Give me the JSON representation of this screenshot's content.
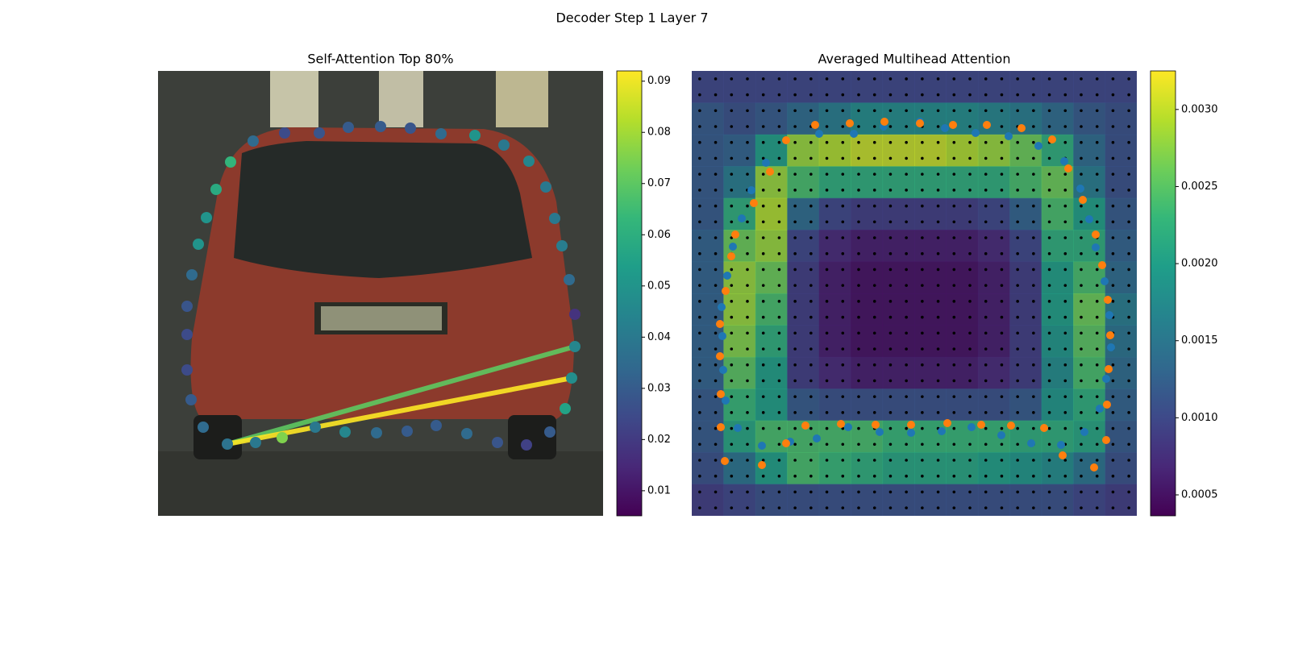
{
  "title": "Decoder Step 1 Layer 7",
  "chart_data": [
    {
      "type": "scatter",
      "title": "Self-Attention Top 80%",
      "xlim": [
        0,
        552
      ],
      "ylim": [
        552,
        0
      ],
      "x": [
        86,
        121,
        154,
        195,
        232,
        271,
        309,
        345,
        383,
        421,
        457,
        486,
        505,
        513,
        517,
        517,
        510,
        501,
        492,
        481,
        460,
        429,
        393,
        351,
        313,
        276,
        236,
        200,
        157,
        118,
        90,
        72,
        60,
        50,
        42,
        36,
        36,
        36,
        41,
        56
      ],
      "y": [
        463,
        461,
        455,
        442,
        448,
        449,
        447,
        440,
        450,
        461,
        464,
        448,
        419,
        381,
        342,
        302,
        259,
        217,
        183,
        144,
        112,
        92,
        80,
        78,
        71,
        69,
        70,
        77,
        77,
        87,
        113,
        147,
        182,
        215,
        253,
        292,
        327,
        371,
        408,
        442
      ],
      "values": [
        0.038,
        0.04,
        0.075,
        0.04,
        0.045,
        0.035,
        0.03,
        0.03,
        0.035,
        0.028,
        0.022,
        0.03,
        0.055,
        0.048,
        0.045,
        0.018,
        0.035,
        0.042,
        0.04,
        0.04,
        0.045,
        0.04,
        0.05,
        0.035,
        0.028,
        0.03,
        0.03,
        0.028,
        0.025,
        0.035,
        0.062,
        0.058,
        0.05,
        0.05,
        0.035,
        0.028,
        0.025,
        0.025,
        0.03,
        0.035
      ],
      "lines": [
        {
          "from": 0,
          "to": 14,
          "value": 0.07
        },
        {
          "from": 0,
          "to": 13,
          "value": 0.092
        }
      ],
      "clim": [
        0.0051,
        0.092
      ],
      "cticks": [
        0.01,
        0.02,
        0.03,
        0.04,
        0.05,
        0.06,
        0.07,
        0.08,
        0.09
      ]
    },
    {
      "type": "heatmap",
      "title": "Averaged Multihead Attention",
      "xlim": [
        0,
        552
      ],
      "ylim": [
        552,
        0
      ],
      "heatmap": [
        [
          0.001,
          0.001,
          0.001,
          0.001,
          0.001,
          0.001,
          0.001,
          0.001,
          0.001,
          0.001,
          0.001,
          0.001,
          0.001,
          0.001
        ],
        [
          0.0012,
          0.0011,
          0.0012,
          0.0014,
          0.0016,
          0.0018,
          0.0018,
          0.0018,
          0.0018,
          0.0017,
          0.0016,
          0.0014,
          0.0012,
          0.0011
        ],
        [
          0.0012,
          0.0013,
          0.002,
          0.0028,
          0.0029,
          0.003,
          0.003,
          0.003,
          0.0029,
          0.0028,
          0.0026,
          0.0022,
          0.0014,
          0.0011
        ],
        [
          0.0012,
          0.0016,
          0.0028,
          0.0024,
          0.0022,
          0.0022,
          0.0022,
          0.0022,
          0.0022,
          0.0022,
          0.0024,
          0.0026,
          0.0016,
          0.0011
        ],
        [
          0.0012,
          0.0022,
          0.0029,
          0.0014,
          0.001,
          0.0009,
          0.0009,
          0.0009,
          0.0009,
          0.001,
          0.0013,
          0.0024,
          0.002,
          0.0012
        ],
        [
          0.0013,
          0.0026,
          0.0028,
          0.001,
          0.0007,
          0.0006,
          0.0006,
          0.0006,
          0.0006,
          0.0007,
          0.001,
          0.0022,
          0.0022,
          0.0013
        ],
        [
          0.0013,
          0.0028,
          0.0026,
          0.0009,
          0.0006,
          0.0005,
          0.0005,
          0.0005,
          0.0005,
          0.0006,
          0.0009,
          0.002,
          0.0024,
          0.0014
        ],
        [
          0.0013,
          0.0028,
          0.0024,
          0.0009,
          0.0006,
          0.0005,
          0.0005,
          0.0005,
          0.0005,
          0.0006,
          0.0009,
          0.002,
          0.0026,
          0.0016
        ],
        [
          0.0013,
          0.0027,
          0.0022,
          0.0009,
          0.0006,
          0.0005,
          0.0005,
          0.0005,
          0.0005,
          0.0006,
          0.0009,
          0.0019,
          0.0025,
          0.0015
        ],
        [
          0.0013,
          0.0025,
          0.002,
          0.0009,
          0.0007,
          0.0006,
          0.0006,
          0.0006,
          0.0006,
          0.0007,
          0.0009,
          0.0018,
          0.0024,
          0.0014
        ],
        [
          0.0012,
          0.0023,
          0.002,
          0.0012,
          0.0011,
          0.0011,
          0.0011,
          0.0011,
          0.0011,
          0.0011,
          0.0012,
          0.0019,
          0.0022,
          0.0013
        ],
        [
          0.0012,
          0.0021,
          0.0024,
          0.0024,
          0.0024,
          0.0024,
          0.0023,
          0.0023,
          0.0023,
          0.0023,
          0.0022,
          0.0022,
          0.0021,
          0.0012
        ],
        [
          0.0011,
          0.0015,
          0.002,
          0.0024,
          0.0023,
          0.0022,
          0.0021,
          0.0021,
          0.0021,
          0.002,
          0.0019,
          0.0018,
          0.0015,
          0.0011
        ],
        [
          0.0009,
          0.001,
          0.0011,
          0.0011,
          0.0011,
          0.0011,
          0.0011,
          0.0011,
          0.0011,
          0.0011,
          0.0011,
          0.0011,
          0.001,
          0.0009
        ]
      ],
      "series": [
        {
          "color": "#1f77b4",
          "x": [
            158,
            201,
            238,
            283,
            314,
            352,
            393,
            430,
            462,
            482,
            493,
            501,
            512,
            518,
            520,
            514,
            506,
            487,
            458,
            421,
            384,
            347,
            310,
            272,
            233,
            194,
            155,
            122,
            87,
            57,
            42,
            39,
            38,
            37,
            44,
            51,
            62,
            74,
            92
          ],
          "y": [
            78,
            78,
            69,
            63,
            71,
            77,
            81,
            93,
            112,
            146,
            184,
            219,
            261,
            303,
            343,
            382,
            419,
            448,
            464,
            462,
            452,
            442,
            447,
            449,
            448,
            442,
            456,
            460,
            465,
            443,
            409,
            371,
            329,
            293,
            254,
            218,
            183,
            148,
            114
          ]
        },
        {
          "color": "#ff7f0e",
          "x": [
            153,
            196,
            239,
            283,
            324,
            366,
            409,
            447,
            467,
            485,
            501,
            509,
            516,
            519,
            517,
            515,
            514,
            460,
            499,
            437,
            396,
            359,
            317,
            272,
            228,
            185,
            141,
            117,
            87,
            41,
            36,
            36,
            35,
            35,
            42,
            49,
            54,
            77,
            97,
            117
          ],
          "y": [
            67,
            65,
            63,
            65,
            67,
            67,
            71,
            85,
            121,
            160,
            203,
            241,
            284,
            328,
            370,
            414,
            458,
            477,
            492,
            443,
            440,
            439,
            437,
            439,
            439,
            438,
            440,
            462,
            489,
            484,
            442,
            401,
            354,
            314,
            273,
            230,
            203,
            164,
            125,
            86
          ]
        }
      ],
      "clim": [
        0.000364,
        0.00325
      ],
      "cticks": [
        {
          "value": 0.0005,
          "label": "0.0005"
        },
        {
          "value": 0.001,
          "label": "0.0010"
        },
        {
          "value": 0.0015,
          "label": "0.0015"
        },
        {
          "value": 0.002,
          "label": "0.0020"
        },
        {
          "value": 0.0025,
          "label": "0.0025"
        },
        {
          "value": 0.003,
          "label": "0.0030"
        }
      ]
    }
  ]
}
